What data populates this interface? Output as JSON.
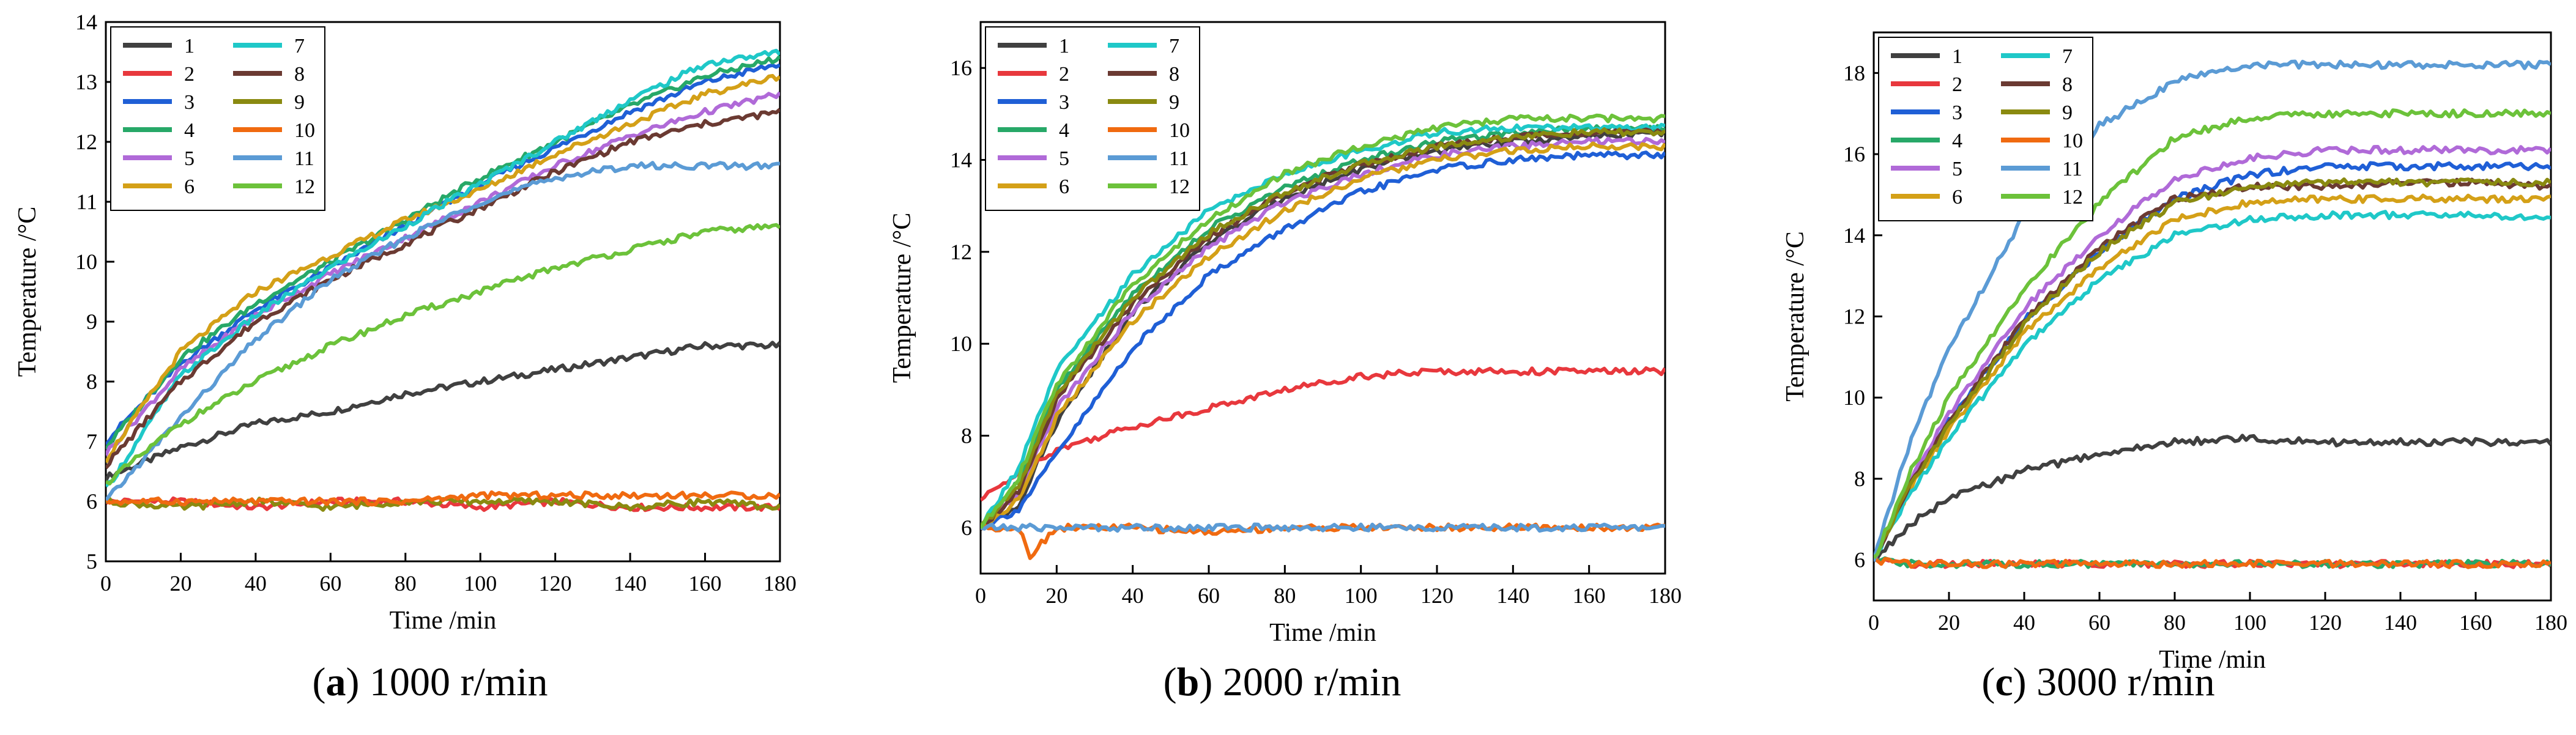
{
  "figure": {
    "panels": [
      {
        "caption_letter": "a",
        "caption_text": "1000 r/min"
      },
      {
        "caption_letter": "b",
        "caption_text": "2000 r/min"
      },
      {
        "caption_letter": "c",
        "caption_text": "3000 r/min"
      }
    ]
  },
  "series_colors": {
    "1": "#404040",
    "2": "#e8383d",
    "3": "#1f5fd6",
    "4": "#27a868",
    "5": "#b06ad8",
    "6": "#d4a017",
    "7": "#1fc8c8",
    "8": "#6b3a32",
    "9": "#8a8a10",
    "10": "#f06a10",
    "11": "#5b9bd5",
    "12": "#6cc23a"
  },
  "chart_data": [
    {
      "type": "line",
      "title": "1000 r/min",
      "xlabel": "Time /min",
      "ylabel": "Temperature /°C",
      "xlim": [
        0,
        180
      ],
      "ylim": [
        5,
        14
      ],
      "xticks": [
        0,
        20,
        40,
        60,
        80,
        100,
        120,
        140,
        160,
        180
      ],
      "yticks": [
        5,
        6,
        7,
        8,
        9,
        10,
        11,
        12,
        13,
        14
      ],
      "legend_position": "top-left",
      "series": [
        {
          "name": "1",
          "x": [
            0,
            20,
            40,
            60,
            80,
            100,
            120,
            140,
            160,
            180
          ],
          "values": [
            6.4,
            6.9,
            7.3,
            7.5,
            7.8,
            8.0,
            8.2,
            8.4,
            8.6,
            8.6
          ]
        },
        {
          "name": "2",
          "x": [
            0,
            20,
            40,
            60,
            80,
            100,
            120,
            140,
            160,
            180
          ],
          "values": [
            6.0,
            6.0,
            5.9,
            6.0,
            6.0,
            5.9,
            6.0,
            5.9,
            5.9,
            5.9
          ]
        },
        {
          "name": "3",
          "x": [
            0,
            20,
            40,
            60,
            80,
            100,
            120,
            140,
            160,
            180
          ],
          "values": [
            7.0,
            8.3,
            9.2,
            9.9,
            10.6,
            11.3,
            11.9,
            12.5,
            13.0,
            13.3
          ]
        },
        {
          "name": "4",
          "x": [
            0,
            20,
            40,
            60,
            80,
            100,
            120,
            140,
            160,
            180
          ],
          "values": [
            6.9,
            8.4,
            9.3,
            10.0,
            10.7,
            11.4,
            12.0,
            12.6,
            13.1,
            13.4
          ]
        },
        {
          "name": "5",
          "x": [
            0,
            20,
            40,
            60,
            80,
            100,
            120,
            140,
            160,
            180
          ],
          "values": [
            6.8,
            8.2,
            9.1,
            9.8,
            10.4,
            11.0,
            11.6,
            12.1,
            12.5,
            12.8
          ]
        },
        {
          "name": "6",
          "x": [
            0,
            20,
            40,
            60,
            80,
            100,
            120,
            140,
            160,
            180
          ],
          "values": [
            6.7,
            8.5,
            9.5,
            10.1,
            10.7,
            11.2,
            11.8,
            12.3,
            12.8,
            13.1
          ]
        },
        {
          "name": "7",
          "x": [
            0,
            20,
            40,
            60,
            80,
            100,
            120,
            140,
            160,
            180
          ],
          "values": [
            6.2,
            8.1,
            9.1,
            9.9,
            10.6,
            11.3,
            12.0,
            12.7,
            13.3,
            13.5
          ]
        },
        {
          "name": "8",
          "x": [
            0,
            20,
            40,
            60,
            80,
            100,
            120,
            140,
            160,
            180
          ],
          "values": [
            6.6,
            8.0,
            9.0,
            9.7,
            10.3,
            10.9,
            11.5,
            12.0,
            12.3,
            12.5
          ]
        },
        {
          "name": "9",
          "x": [
            0,
            20,
            40,
            60,
            80,
            100,
            120,
            140,
            160,
            180
          ],
          "values": [
            6.0,
            5.9,
            6.0,
            5.9,
            6.0,
            6.0,
            6.0,
            5.9,
            6.0,
            5.9
          ]
        },
        {
          "name": "10",
          "x": [
            0,
            20,
            40,
            60,
            80,
            100,
            120,
            140,
            160,
            180
          ],
          "values": [
            6.0,
            6.0,
            6.0,
            6.0,
            6.0,
            6.1,
            6.1,
            6.1,
            6.1,
            6.1
          ]
        },
        {
          "name": "11",
          "x": [
            0,
            20,
            40,
            60,
            80,
            100,
            120,
            140,
            160,
            180
          ],
          "values": [
            6.0,
            7.4,
            8.7,
            9.7,
            10.4,
            11.0,
            11.4,
            11.6,
            11.6,
            11.6
          ]
        },
        {
          "name": "12",
          "x": [
            0,
            20,
            40,
            60,
            80,
            100,
            120,
            140,
            160,
            180
          ],
          "values": [
            6.3,
            7.3,
            8.0,
            8.6,
            9.1,
            9.5,
            9.9,
            10.2,
            10.5,
            10.6
          ]
        }
      ]
    },
    {
      "type": "line",
      "title": "2000 r/min",
      "xlabel": "Time /min",
      "ylabel": "Temperature /°C",
      "xlim": [
        0,
        180
      ],
      "ylim": [
        5,
        17
      ],
      "xticks": [
        0,
        20,
        40,
        60,
        80,
        100,
        120,
        140,
        160,
        180
      ],
      "yticks": [
        6,
        8,
        10,
        12,
        14,
        16
      ],
      "legend_position": "top-left",
      "series": [
        {
          "name": "1",
          "x": [
            0,
            10,
            20,
            40,
            60,
            80,
            100,
            120,
            140,
            160,
            180
          ],
          "values": [
            6.0,
            6.5,
            8.3,
            10.7,
            12.2,
            13.2,
            13.8,
            14.2,
            14.4,
            14.5,
            14.6
          ]
        },
        {
          "name": "2",
          "x": [
            0,
            10,
            20,
            40,
            60,
            80,
            100,
            120,
            140,
            160,
            180
          ],
          "values": [
            6.6,
            7.2,
            7.7,
            8.2,
            8.6,
            9.0,
            9.3,
            9.4,
            9.4,
            9.4,
            9.4
          ]
        },
        {
          "name": "3",
          "x": [
            0,
            10,
            20,
            40,
            60,
            80,
            100,
            120,
            140,
            160,
            180
          ],
          "values": [
            6.0,
            6.4,
            7.6,
            9.9,
            11.5,
            12.5,
            13.3,
            13.8,
            14.0,
            14.1,
            14.1
          ]
        },
        {
          "name": "4",
          "x": [
            0,
            10,
            20,
            40,
            60,
            80,
            100,
            120,
            140,
            160,
            180
          ],
          "values": [
            6.0,
            7.0,
            9.0,
            11.1,
            12.5,
            13.4,
            14.0,
            14.4,
            14.6,
            14.7,
            14.7
          ]
        },
        {
          "name": "5",
          "x": [
            0,
            10,
            20,
            40,
            60,
            80,
            100,
            120,
            140,
            160,
            180
          ],
          "values": [
            6.0,
            6.7,
            8.6,
            10.7,
            12.1,
            13.1,
            13.7,
            14.1,
            14.3,
            14.4,
            14.4
          ]
        },
        {
          "name": "6",
          "x": [
            0,
            10,
            20,
            40,
            60,
            80,
            100,
            120,
            140,
            160,
            180
          ],
          "values": [
            6.0,
            6.6,
            8.4,
            10.5,
            11.9,
            12.9,
            13.6,
            14.0,
            14.2,
            14.3,
            14.3
          ]
        },
        {
          "name": "7",
          "x": [
            0,
            10,
            20,
            40,
            60,
            80,
            100,
            120,
            140,
            160,
            180
          ],
          "values": [
            6.0,
            7.3,
            9.4,
            11.5,
            12.9,
            13.7,
            14.2,
            14.6,
            14.7,
            14.7,
            14.7
          ]
        },
        {
          "name": "8",
          "x": [
            0,
            10,
            20,
            40,
            60,
            80,
            100,
            120,
            140,
            160,
            180
          ],
          "values": [
            6.0,
            6.8,
            8.8,
            10.9,
            12.3,
            13.3,
            13.9,
            14.3,
            14.5,
            14.6,
            14.6
          ]
        },
        {
          "name": "9",
          "x": [
            0,
            10,
            20,
            40,
            60,
            80,
            100,
            120,
            140,
            160,
            180
          ],
          "values": [
            6.0,
            6.9,
            8.9,
            11.0,
            12.4,
            13.3,
            13.9,
            14.3,
            14.5,
            14.6,
            14.6
          ]
        },
        {
          "name": "10",
          "x": [
            0,
            10,
            13,
            20,
            40,
            60,
            80,
            100,
            120,
            140,
            160,
            180
          ],
          "values": [
            6.0,
            6.0,
            5.4,
            6.0,
            6.0,
            5.9,
            6.0,
            6.0,
            6.0,
            6.0,
            6.0,
            6.0
          ]
        },
        {
          "name": "11",
          "x": [
            0,
            10,
            20,
            40,
            60,
            80,
            100,
            120,
            140,
            160,
            180
          ],
          "values": [
            6.0,
            6.0,
            6.0,
            6.0,
            6.0,
            6.0,
            6.0,
            6.0,
            6.0,
            6.0,
            6.0
          ]
        },
        {
          "name": "12",
          "x": [
            0,
            10,
            20,
            40,
            60,
            80,
            100,
            120,
            140,
            160,
            180
          ],
          "values": [
            6.0,
            7.1,
            9.1,
            11.3,
            12.7,
            13.7,
            14.3,
            14.7,
            14.9,
            14.9,
            14.9
          ]
        }
      ]
    },
    {
      "type": "line",
      "title": "3000 r/min",
      "xlabel": "Time /min",
      "ylabel": "Temperature /°C",
      "xlim": [
        0,
        180
      ],
      "ylim": [
        5,
        19
      ],
      "xticks": [
        0,
        20,
        40,
        60,
        80,
        100,
        120,
        140,
        160,
        180
      ],
      "yticks": [
        6,
        8,
        10,
        12,
        14,
        16,
        18
      ],
      "legend_position": "top-left",
      "series": [
        {
          "name": "1",
          "x": [
            0,
            10,
            20,
            40,
            60,
            80,
            100,
            120,
            140,
            160,
            180
          ],
          "values": [
            6.0,
            6.9,
            7.5,
            8.2,
            8.6,
            8.9,
            9.0,
            8.9,
            8.9,
            8.9,
            8.9
          ]
        },
        {
          "name": "2",
          "x": [
            0,
            10,
            20,
            40,
            60,
            80,
            100,
            120,
            140,
            160,
            180
          ],
          "values": [
            6.0,
            5.9,
            5.9,
            5.9,
            5.9,
            5.9,
            5.9,
            5.9,
            5.9,
            5.9,
            5.9
          ]
        },
        {
          "name": "3",
          "x": [
            0,
            10,
            20,
            40,
            60,
            80,
            100,
            120,
            140,
            160,
            180
          ],
          "values": [
            6.0,
            7.9,
            9.4,
            11.9,
            13.6,
            14.9,
            15.5,
            15.7,
            15.7,
            15.7,
            15.7
          ]
        },
        {
          "name": "4",
          "x": [
            0,
            10,
            20,
            40,
            60,
            80,
            100,
            120,
            140,
            160,
            180
          ],
          "values": [
            6.0,
            5.9,
            5.9,
            5.9,
            5.9,
            5.9,
            5.9,
            5.9,
            5.9,
            5.9,
            5.9
          ]
        },
        {
          "name": "5",
          "x": [
            0,
            10,
            20,
            40,
            60,
            80,
            100,
            120,
            140,
            160,
            180
          ],
          "values": [
            6.0,
            8.0,
            9.6,
            12.2,
            14.0,
            15.4,
            15.9,
            16.1,
            16.1,
            16.1,
            16.1
          ]
        },
        {
          "name": "6",
          "x": [
            0,
            10,
            20,
            40,
            60,
            80,
            100,
            120,
            140,
            160,
            180
          ],
          "values": [
            6.0,
            7.8,
            9.2,
            11.6,
            13.2,
            14.4,
            14.8,
            14.9,
            14.9,
            14.9,
            14.9
          ]
        },
        {
          "name": "7",
          "x": [
            0,
            10,
            20,
            40,
            60,
            80,
            100,
            120,
            140,
            160,
            180
          ],
          "values": [
            6.0,
            7.7,
            9.0,
            11.3,
            12.9,
            14.0,
            14.4,
            14.5,
            14.5,
            14.5,
            14.4
          ]
        },
        {
          "name": "8",
          "x": [
            0,
            10,
            20,
            40,
            60,
            80,
            100,
            120,
            140,
            160,
            180
          ],
          "values": [
            6.0,
            7.9,
            9.4,
            11.9,
            13.7,
            14.9,
            15.2,
            15.2,
            15.3,
            15.3,
            15.2
          ]
        },
        {
          "name": "9",
          "x": [
            0,
            10,
            20,
            40,
            60,
            80,
            100,
            120,
            140,
            160,
            180
          ],
          "values": [
            6.0,
            7.9,
            9.3,
            11.8,
            13.6,
            14.8,
            15.2,
            15.3,
            15.3,
            15.3,
            15.3
          ]
        },
        {
          "name": "10",
          "x": [
            0,
            10,
            20,
            40,
            60,
            80,
            100,
            120,
            140,
            160,
            180
          ],
          "values": [
            6.0,
            5.9,
            5.9,
            5.9,
            5.9,
            5.9,
            5.9,
            5.9,
            5.9,
            5.9,
            5.9
          ]
        },
        {
          "name": "11",
          "x": [
            0,
            10,
            20,
            40,
            60,
            80,
            100,
            120,
            140,
            160,
            180
          ],
          "values": [
            6.0,
            9.0,
            11.2,
            14.5,
            16.7,
            17.8,
            18.2,
            18.2,
            18.2,
            18.2,
            18.2
          ]
        },
        {
          "name": "12",
          "x": [
            0,
            10,
            20,
            40,
            60,
            80,
            100,
            120,
            140,
            160,
            180
          ],
          "values": [
            6.0,
            8.2,
            10.0,
            12.7,
            14.8,
            16.4,
            16.9,
            17.0,
            17.0,
            17.0,
            17.0
          ]
        }
      ]
    }
  ]
}
